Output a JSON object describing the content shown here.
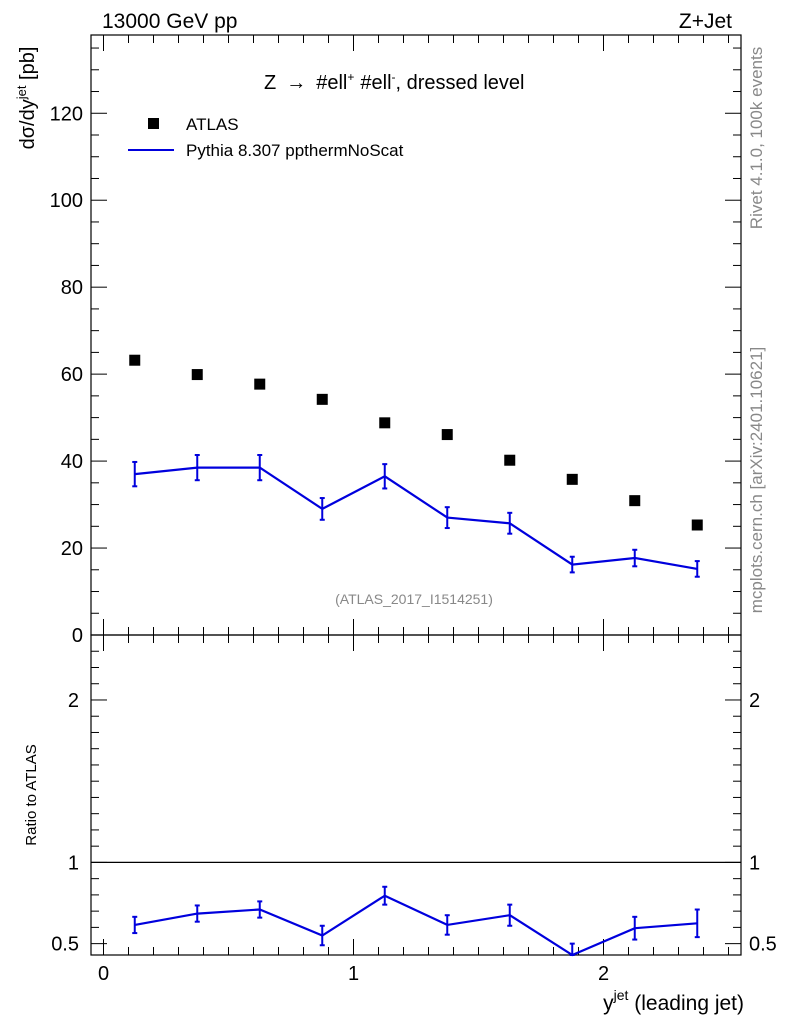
{
  "header": {
    "left": "13000 GeV pp",
    "right": "Z+Jet"
  },
  "side": {
    "top": "Rivet 4.1.0,  100k events",
    "bottom": "mcplots.cern.ch [arXiv:2401.10621]"
  },
  "chart_data": [
    {
      "type": "scatter+line",
      "panel": "main",
      "title_parts": {
        "z": "Z",
        "arrow": "→",
        "l1": "#ell",
        "sup1": "+",
        "l2": "#ell",
        "sup2": "-",
        "rest": ", dressed level"
      },
      "ylabel": {
        "base": "dσ/dy",
        "sup": "jet",
        "unit": " [pb]"
      },
      "ylim": [
        0,
        138
      ],
      "yticks": [
        "0",
        "20",
        "40",
        "60",
        "80",
        "100",
        "120"
      ],
      "watermark": "(ATLAS_2017_I1514251)",
      "legend": {
        "position": "top-left",
        "data": "ATLAS",
        "mc": "Pythia 8.307 ppthermNoScat"
      },
      "x": [
        0.125,
        0.375,
        0.625,
        0.875,
        1.125,
        1.375,
        1.625,
        1.875,
        2.125,
        2.375
      ],
      "series": [
        {
          "name": "ATLAS",
          "values": [
            63.2,
            59.9,
            57.7,
            54.2,
            48.8,
            46.1,
            40.2,
            35.8,
            30.9,
            25.3
          ]
        },
        {
          "name": "Pythia 8.307 ppthermNoScat",
          "values": [
            37.0,
            38.5,
            38.5,
            29.0,
            36.5,
            27.0,
            25.7,
            16.2,
            17.7,
            15.2
          ],
          "errors": [
            2.8,
            2.9,
            2.9,
            2.5,
            2.8,
            2.4,
            2.4,
            1.8,
            1.9,
            1.8
          ]
        }
      ],
      "color": "#0000dd"
    },
    {
      "type": "line",
      "panel": "ratio",
      "ylabel": "Ratio to ATLAS",
      "ylim": [
        0.43,
        2.4
      ],
      "yticks_left": [
        "0.5",
        "1",
        "2"
      ],
      "yticks_right": [
        "0.5",
        "1",
        "2"
      ],
      "xlabel": {
        "base": "y",
        "sup": "jet",
        "rest": " (leading jet)"
      },
      "xlim": [
        -0.05,
        2.55
      ],
      "xticks": [
        "0",
        "1",
        "2"
      ],
      "x": [
        0.125,
        0.375,
        0.625,
        0.875,
        1.125,
        1.375,
        1.625,
        1.875,
        2.125,
        2.375
      ],
      "values": [
        0.615,
        0.685,
        0.71,
        0.55,
        0.795,
        0.615,
        0.675,
        0.43,
        0.595,
        0.625
      ],
      "errors": [
        0.05,
        0.05,
        0.05,
        0.06,
        0.055,
        0.06,
        0.065,
        0.07,
        0.07,
        0.085
      ],
      "reference": 1.0,
      "color": "#0000dd"
    }
  ]
}
